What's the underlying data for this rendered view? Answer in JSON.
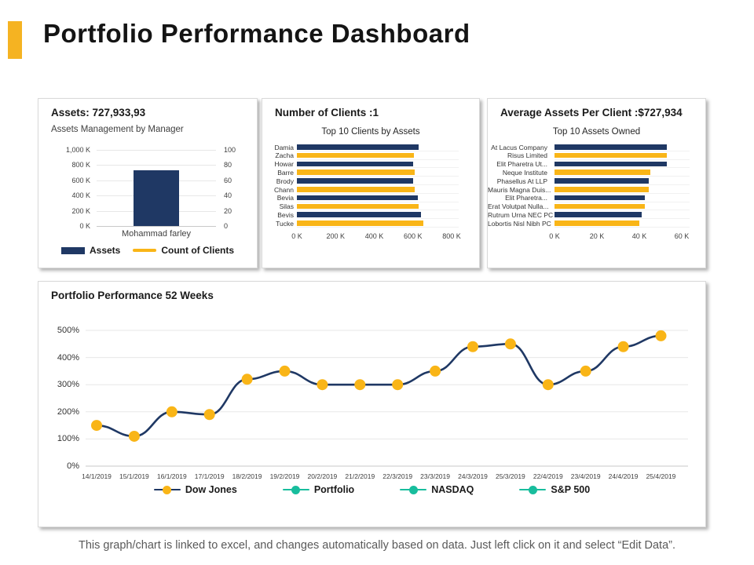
{
  "slide": {
    "title": "Portfolio Performance Dashboard",
    "footer": "This graph/chart is linked to excel, and changes automatically based on data. Just left click on it and select “Edit Data”."
  },
  "colors": {
    "navy": "#1F3864",
    "yellow": "#F9B517",
    "teal": "#18BD9D",
    "accent": "#F5B322",
    "gridline": "#E7E7E7"
  },
  "cards": {
    "assets": {
      "title": "Assets: 727,933,93",
      "subtitle": "Assets Management by Manager",
      "category": "Mohammad farley",
      "legend": [
        {
          "label": "Assets",
          "swatch": "bar",
          "color": "#1F3864"
        },
        {
          "label": "Count of Clients",
          "swatch": "line",
          "color": "#F9B517"
        }
      ]
    },
    "clients": {
      "title": "Number of Clients :1",
      "chart_title": "Top 10 Clients by Assets"
    },
    "avg_assets": {
      "title": "Average Assets Per Client :$727,934",
      "chart_title": "Top 10 Assets Owned"
    },
    "performance": {
      "title": "Portfolio Performance 52 Weeks"
    }
  },
  "chart_data": [
    {
      "type": "bar",
      "title": "Assets Management by Manager",
      "categories": [
        "Mohammad farley"
      ],
      "series": [
        {
          "name": "Assets",
          "axis": "left",
          "values_k": [
            728
          ],
          "color": "#1F3864"
        },
        {
          "name": "Count of Clients",
          "axis": "right",
          "values": [
            1
          ],
          "color": "#F9B517"
        }
      ],
      "left_axis": {
        "ticks": [
          "1,000 K",
          "800 K",
          "600 K",
          "400 K",
          "200 K",
          "0 K"
        ],
        "max_k": 1000
      },
      "right_axis": {
        "ticks": [
          "100",
          "80",
          "60",
          "40",
          "20",
          "0"
        ],
        "max": 100
      },
      "legend_position": "bottom"
    },
    {
      "type": "bar",
      "orientation": "horizontal",
      "title": "Top 10 Clients by Assets",
      "categories": [
        "Damia",
        "Zacha",
        "Howar",
        "Barre",
        "Brody",
        "Chann",
        "Bevia",
        "Silas",
        "Bevis",
        "Tucke"
      ],
      "values_k": [
        630,
        605,
        600,
        610,
        600,
        610,
        625,
        630,
        640,
        655
      ],
      "bar_colors_alternate": [
        "#1F3864",
        "#F9B517"
      ],
      "x_ticks": [
        "0 K",
        "200 K",
        "400 K",
        "600 K",
        "800 K"
      ],
      "xmax_k": 800
    },
    {
      "type": "bar",
      "orientation": "horizontal",
      "title": "Top 10 Assets Owned",
      "categories": [
        "At Lacus Company",
        "Risus Limited",
        "Elit Pharetra Ut...",
        "Neque Institute",
        "Phasellus At LLP",
        "Mauris Magna Duis...",
        "Elit Pharetra...",
        "Erat Volutpat Nulla...",
        "Rutrum Urna NEC PC",
        "Lobortis Nisl Nibh PC"
      ],
      "values_k": [
        53,
        53,
        53,
        45,
        44.5,
        44.5,
        42.5,
        42.5,
        41,
        40
      ],
      "bar_colors_alternate": [
        "#1F3864",
        "#F9B517"
      ],
      "x_ticks": [
        "0 K",
        "20 K",
        "40 K",
        "60 K"
      ],
      "xmax_k": 60
    },
    {
      "type": "line",
      "title": "Portfolio Performance 52 Weeks",
      "x": [
        "14/1/2019",
        "15/1/2019",
        "16/1/2019",
        "17/1/2019",
        "18/2/2019",
        "19/2/2019",
        "20/2/2019",
        "21/2/2019",
        "22/3/2019",
        "23/3/2019",
        "24/3/2019",
        "25/3/2019",
        "22/4/2019",
        "23/4/2019",
        "24/4/2019",
        "25/4/2019"
      ],
      "series": [
        {
          "name": "Dow Jones",
          "values_pct": [
            150,
            110,
            200,
            190,
            320,
            350,
            300,
            300,
            300,
            350,
            440,
            450,
            300,
            350,
            440,
            480
          ],
          "line_color": "#1F3864",
          "marker_color": "#F9B517"
        }
      ],
      "y_ticks": [
        "500%",
        "400%",
        "300%",
        "200%",
        "100%",
        "0%"
      ],
      "ylim_pct": [
        0,
        500
      ],
      "grid": true,
      "legend_position": "bottom",
      "legend": [
        {
          "label": "Dow Jones",
          "line_color": "#1F3864",
          "marker_color": "#F9B517"
        },
        {
          "label": "Portfolio",
          "line_color": "#18BD9D",
          "marker_color": "#18BD9D"
        },
        {
          "label": "NASDAQ",
          "line_color": "#18BD9D",
          "marker_color": "#18BD9D"
        },
        {
          "label": "S&P 500",
          "line_color": "#18BD9D",
          "marker_color": "#18BD9D"
        }
      ]
    }
  ]
}
